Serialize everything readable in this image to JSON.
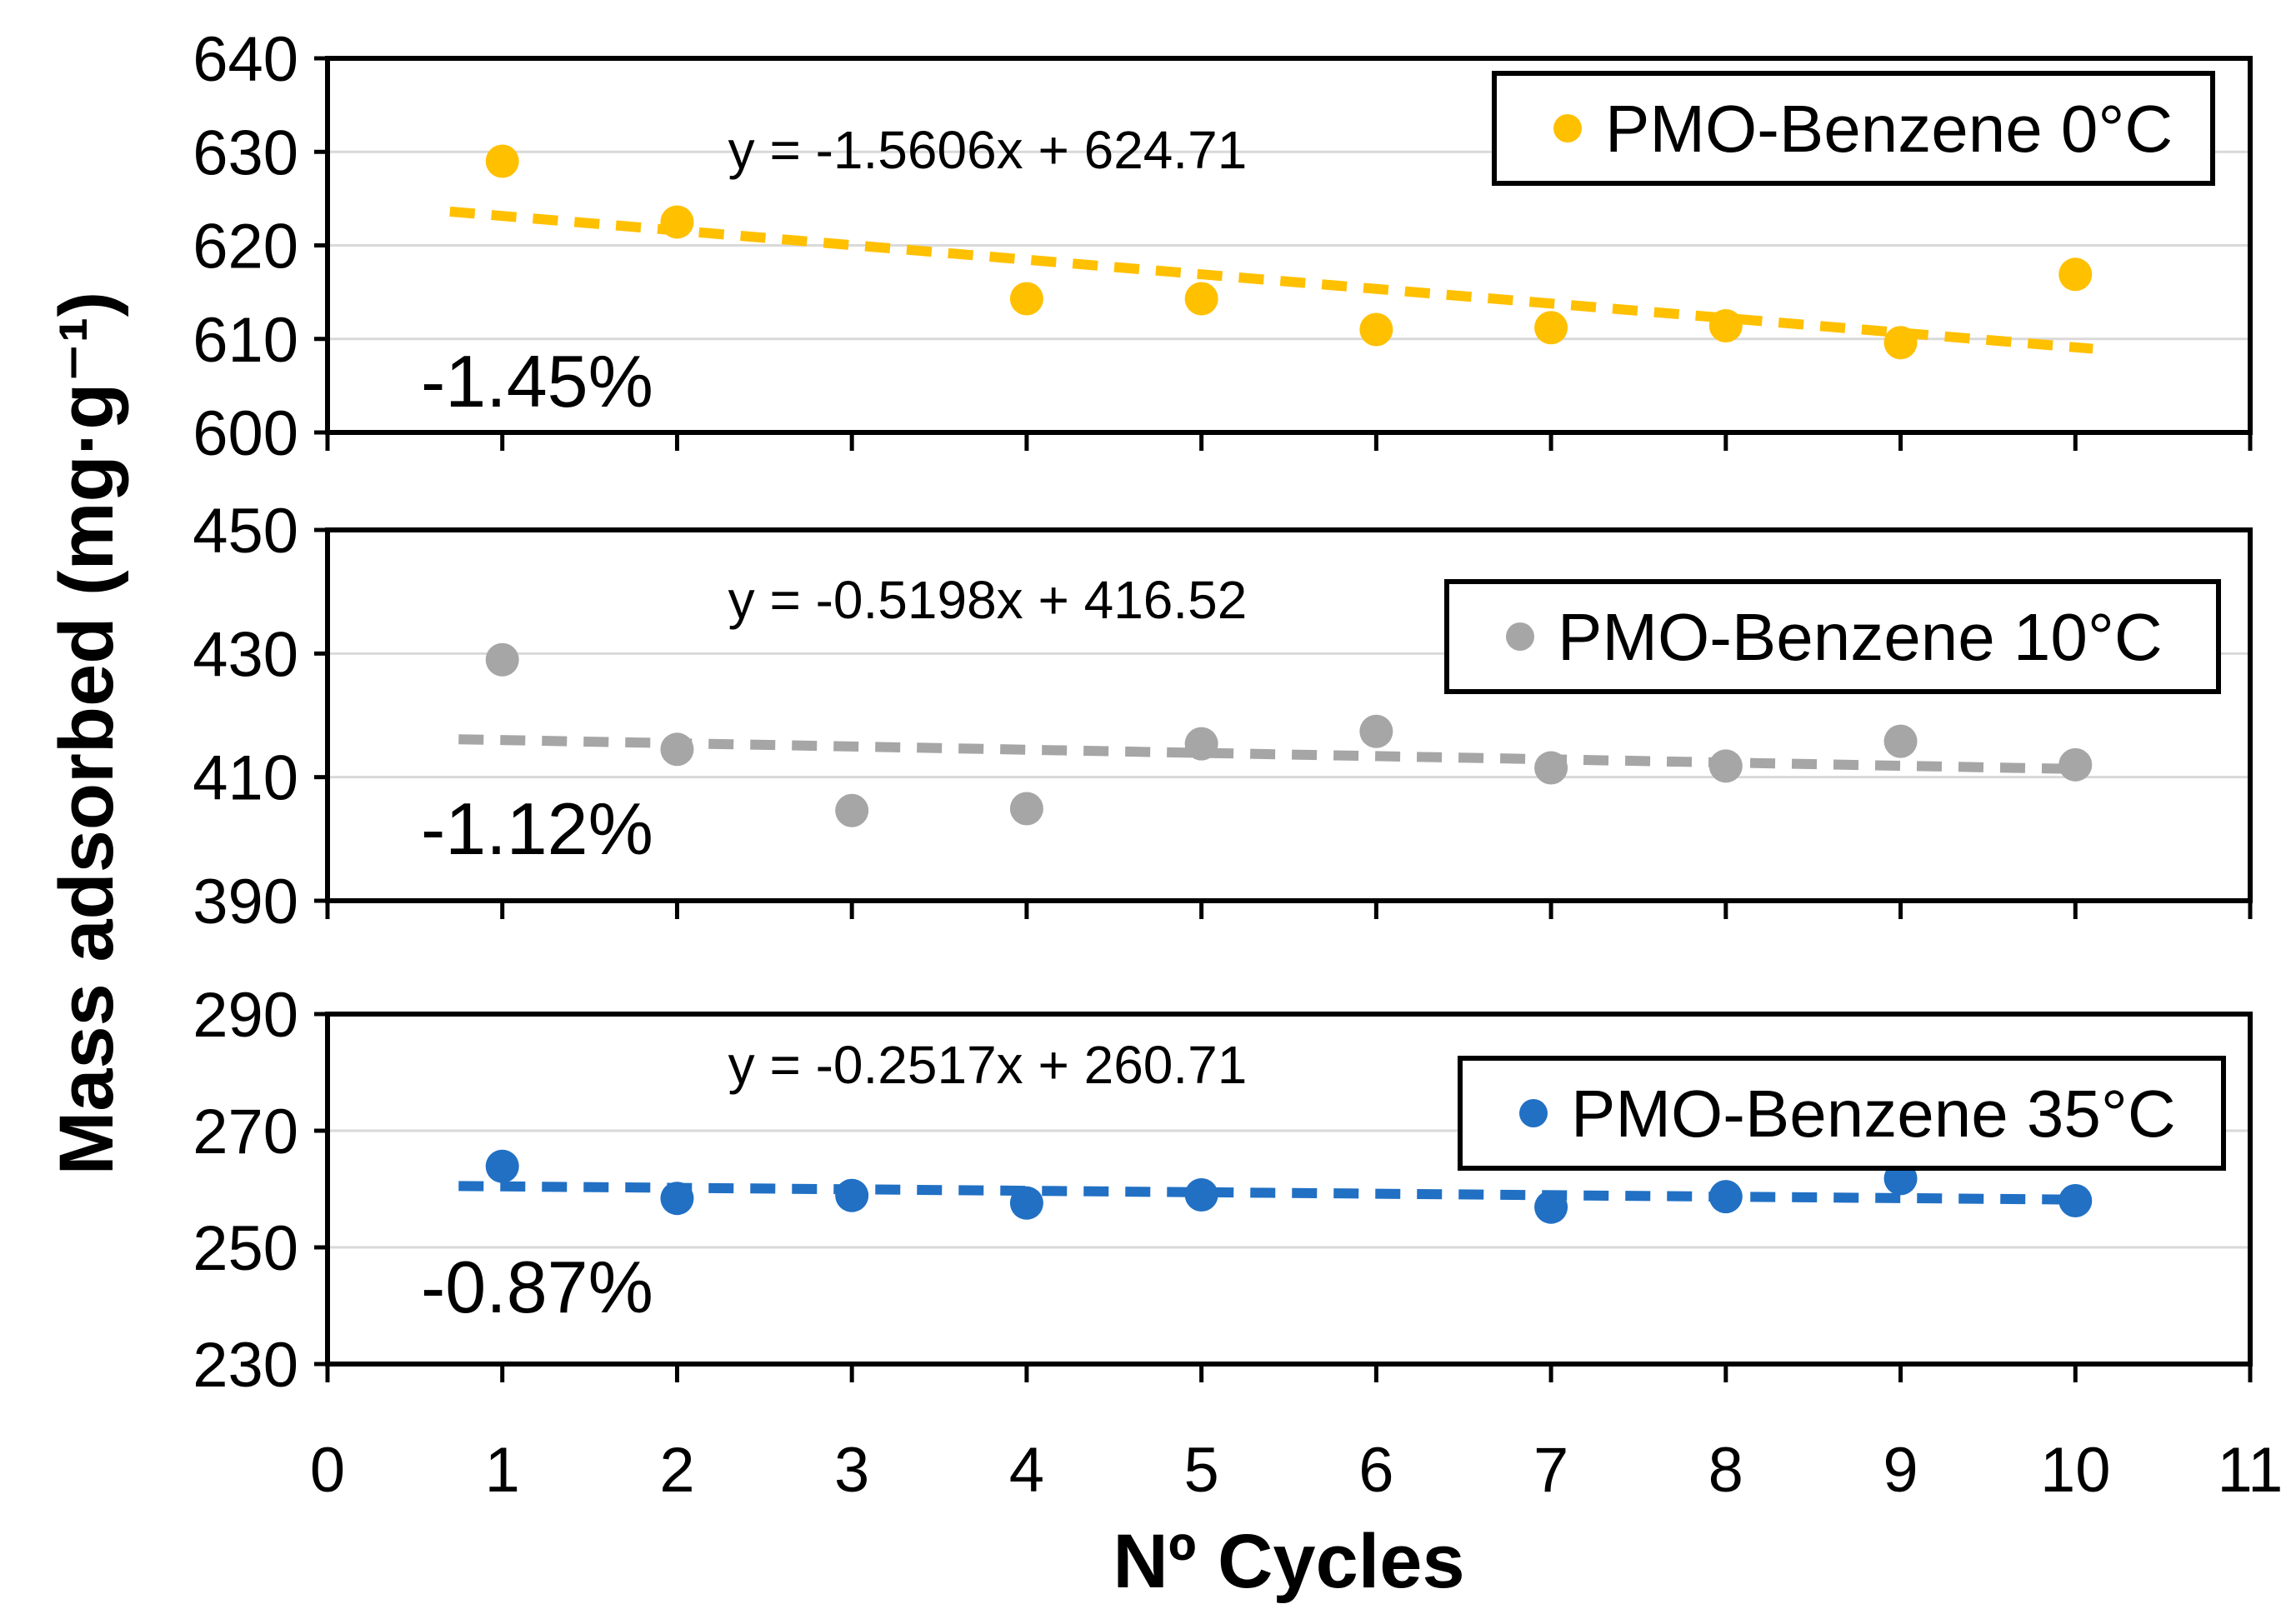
{
  "axes": {
    "x_title": "Nº Cycles",
    "y_title": "Mass adsorbed (mg·g⁻¹)",
    "xlim": [
      0,
      11
    ],
    "x_ticks": [
      0,
      1,
      2,
      3,
      4,
      5,
      6,
      7,
      8,
      9,
      10,
      11
    ]
  },
  "chart_data": [
    {
      "type": "scatter",
      "name": "PMO-Benzene 0°C",
      "legend_label": "PMO-Benzene 0°C",
      "color": "#FFC000",
      "x": [
        1,
        2,
        4,
        5,
        6,
        7,
        8,
        9,
        10
      ],
      "y": [
        629.0,
        622.5,
        614.3,
        614.3,
        611.0,
        611.2,
        611.4,
        609.6,
        616.9
      ],
      "trendline": {
        "label": "y = -1.5606x + 624.71",
        "slope": -1.5606,
        "intercept": 624.71,
        "x_start": 0.7,
        "x_end": 10.1,
        "style": "dashed"
      },
      "annotation": "-1.45%",
      "ylim": [
        600,
        640
      ],
      "y_ticks": [
        600,
        610,
        620,
        630,
        640
      ],
      "grid": true,
      "legend_position": "top-right"
    },
    {
      "type": "scatter",
      "name": "PMO-Benzene 10°C",
      "legend_label": "PMO-Benzene 10°C",
      "color": "#A6A6A6",
      "x": [
        1,
        2,
        3,
        4,
        5,
        6,
        7,
        8,
        9,
        10
      ],
      "y": [
        429.0,
        414.5,
        404.6,
        404.9,
        415.4,
        417.4,
        411.5,
        411.8,
        415.8,
        412.0
      ],
      "trendline": {
        "label": "y = -0.5198x + 416.52",
        "slope": -0.5198,
        "intercept": 416.52,
        "x_start": 0.75,
        "x_end": 10.0,
        "style": "dashed"
      },
      "annotation": "-1.12%",
      "ylim": [
        390,
        450
      ],
      "y_ticks": [
        390,
        410,
        430,
        450
      ],
      "grid": true,
      "legend_position": "top-right"
    },
    {
      "type": "scatter",
      "name": "PMO-Benzene 35°C",
      "legend_label": "PMO-Benzene 35°C",
      "color": "#2170C4",
      "x": [
        1,
        2,
        3,
        4,
        5,
        7,
        8,
        9,
        10
      ],
      "y": [
        263.9,
        258.4,
        258.9,
        257.6,
        259.0,
        256.9,
        258.7,
        261.8,
        258.0
      ],
      "trendline": {
        "label": "y = -0.2517x + 260.71",
        "slope": -0.2517,
        "intercept": 260.71,
        "x_start": 0.75,
        "x_end": 10.0,
        "style": "dashed"
      },
      "annotation": "-0.87%",
      "ylim": [
        230,
        290
      ],
      "y_ticks": [
        230,
        250,
        270,
        290
      ],
      "grid": true,
      "legend_position": "top-right"
    }
  ]
}
